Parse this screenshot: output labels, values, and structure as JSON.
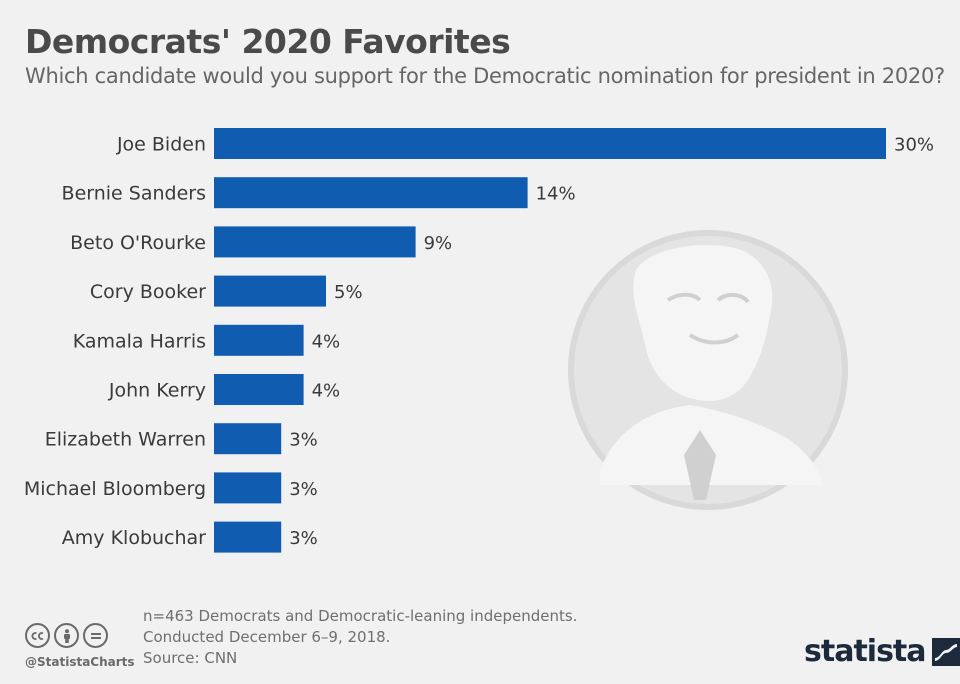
{
  "header": {
    "title": "Democrats' 2020 Favorites",
    "subtitle": "Which candidate would you support for the Democratic nomination for president in 2020?"
  },
  "chart_data": {
    "type": "bar",
    "orientation": "horizontal",
    "categories": [
      "Joe Biden",
      "Bernie Sanders",
      "Beto O'Rourke",
      "Cory Booker",
      "Kamala Harris",
      "John Kerry",
      "Elizabeth Warren",
      "Michael Bloomberg",
      "Amy Klobuchar"
    ],
    "values": [
      30,
      14,
      9,
      5,
      4,
      4,
      3,
      3,
      3
    ],
    "value_labels": [
      "30%",
      "14%",
      "9%",
      "5%",
      "4%",
      "4%",
      "3%",
      "3%",
      "3%"
    ],
    "xlim": [
      0,
      30
    ],
    "grid": false,
    "bar_color": "#0f5cb0"
  },
  "footer": {
    "note_lines": [
      "n=463 Democrats and Democratic-leaning independents.",
      "Conducted December 6–9, 2018.",
      "Source: CNN"
    ],
    "cc_icons": [
      "cc-icon",
      "by-icon",
      "nd-icon"
    ],
    "handle": "@StatistaCharts",
    "brand": "statista"
  },
  "colors": {
    "background": "#f1f1f1",
    "bar": "#0f5cb0",
    "brand": "#1c2a3c"
  }
}
